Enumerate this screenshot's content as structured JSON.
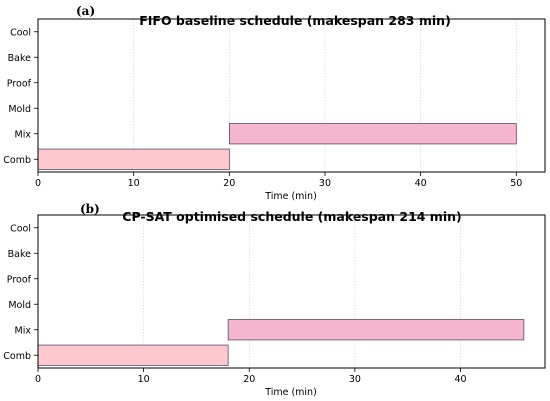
{
  "chart_data": [
    {
      "type": "gantt",
      "panel_label": "(a)",
      "title": "FIFO baseline schedule (makespan 283 min)",
      "xlabel": "Time (min)",
      "ylabel": "",
      "xlim": [
        0,
        53
      ],
      "xticks": [
        0,
        10,
        20,
        30,
        40,
        50
      ],
      "categories": [
        "Comb",
        "Mix",
        "Mold",
        "Proof",
        "Bake",
        "Cool"
      ],
      "grid": true,
      "bars": [
        {
          "stage": "Comb",
          "start": 0,
          "end": 20,
          "color": "#ffc8cf"
        },
        {
          "stage": "Mix",
          "start": 20,
          "end": 50,
          "color": "#f7b6cf"
        }
      ]
    },
    {
      "type": "gantt",
      "panel_label": "(b)",
      "title": "CP-SAT optimised schedule (makespan 214 min)",
      "xlabel": "Time (min)",
      "ylabel": "",
      "xlim": [
        0,
        48
      ],
      "xticks": [
        0,
        10,
        20,
        30,
        40
      ],
      "categories": [
        "Comb",
        "Mix",
        "Mold",
        "Proof",
        "Bake",
        "Cool"
      ],
      "grid": true,
      "bars": [
        {
          "stage": "Comb",
          "start": 0,
          "end": 18,
          "color": "#ffc8cf"
        },
        {
          "stage": "Mix",
          "start": 18,
          "end": 46,
          "color": "#f7b6cf"
        }
      ]
    }
  ]
}
